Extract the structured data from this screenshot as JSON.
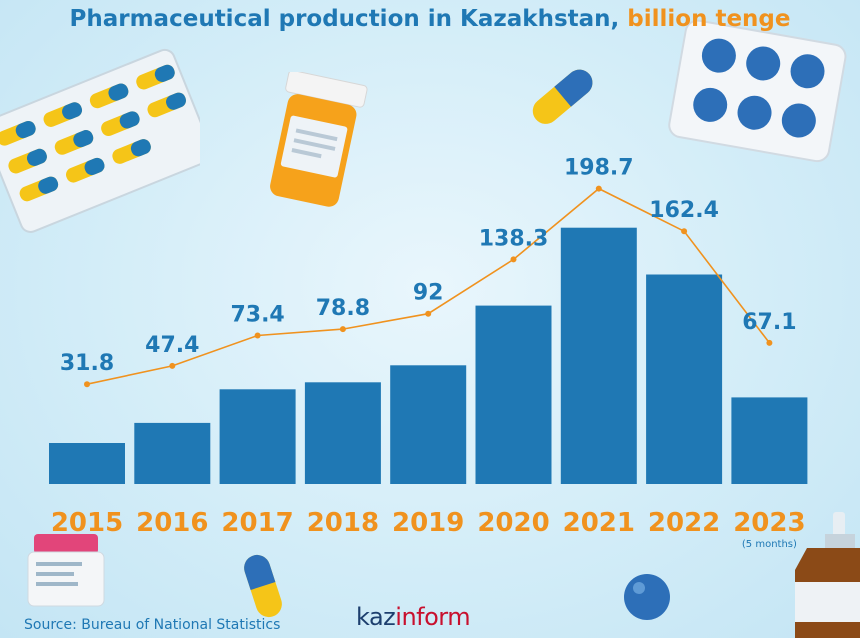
{
  "title": {
    "main": "Pharmaceutical production in Kazakhstan,",
    "highlight": "billion tenge"
  },
  "source": "Source: Bureau of National Statistics",
  "logo": {
    "part1": "kaz",
    "part2": "inform"
  },
  "colors": {
    "bar": "#1f78b4",
    "line": "#f0921e",
    "title": "#1f78b4",
    "accent": "#f0921e"
  },
  "chart_data": {
    "type": "bar",
    "categories": [
      "2015",
      "2016",
      "2017",
      "2018",
      "2019",
      "2020",
      "2021",
      "2022",
      "2023"
    ],
    "category_notes": {
      "2023": "(5 months)"
    },
    "values": [
      31.8,
      47.4,
      73.4,
      78.8,
      92,
      138.3,
      198.7,
      162.4,
      67.1
    ],
    "value_labels": [
      "31.8",
      "47.4",
      "73.4",
      "78.8",
      "92",
      "138.3",
      "198.7",
      "162.4",
      "67.1"
    ],
    "overlay": "line connecting the same values",
    "xlabel": "",
    "ylabel": "",
    "ylim": [
      0,
      210
    ],
    "grid": false,
    "legend": "none"
  }
}
